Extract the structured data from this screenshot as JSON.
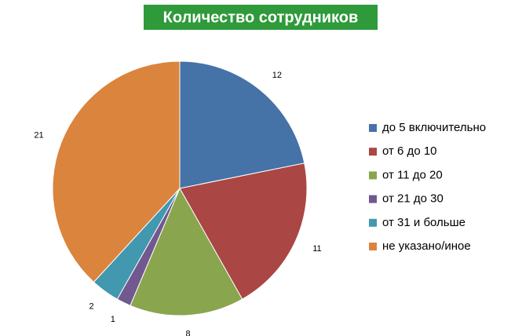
{
  "chart_data": {
    "type": "pie",
    "title": "Количество сотрудников",
    "categories": [
      "до 5 включительно",
      "от 6 до 10",
      "от 11 до 20",
      "от 21 до 30",
      "от 31 и больше",
      "не указано/иное"
    ],
    "values": [
      12,
      11,
      8,
      1,
      2,
      21
    ],
    "colors": [
      "#4572a7",
      "#aa4643",
      "#89a54e",
      "#71588f",
      "#4198af",
      "#db843d"
    ],
    "legend": "right"
  }
}
